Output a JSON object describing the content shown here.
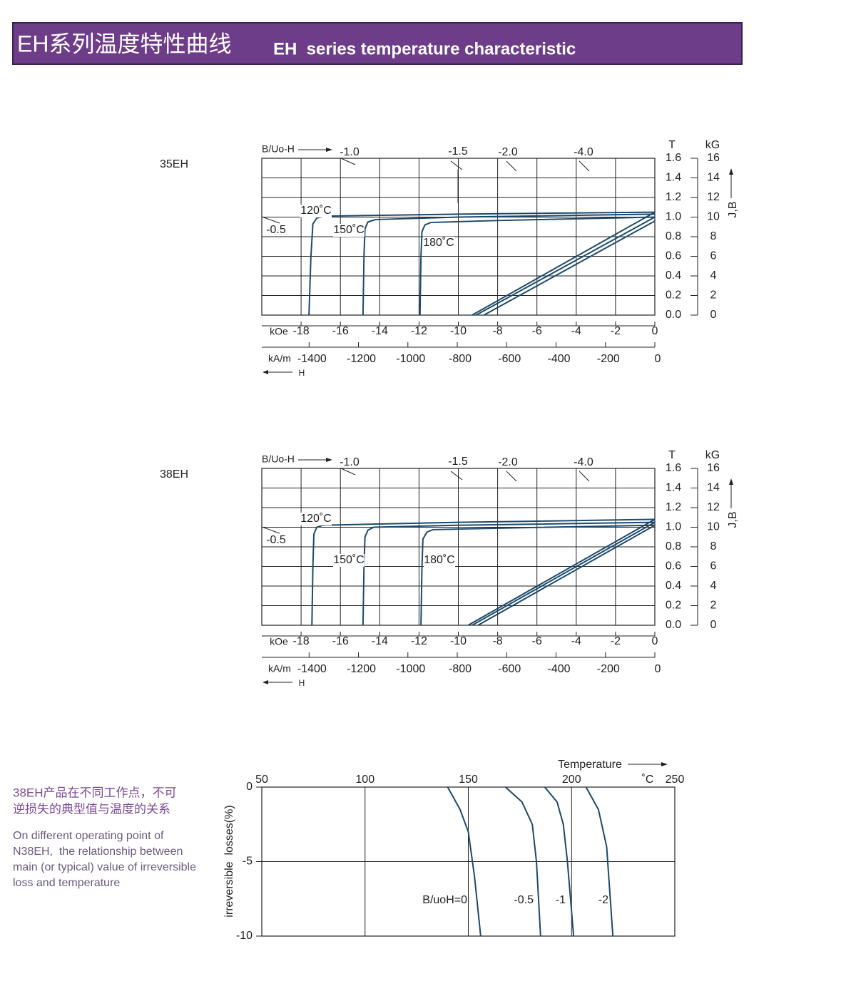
{
  "header": {
    "title_zh": "EH系列温度特性曲线",
    "title_en": "EH  series temperature characteristic"
  },
  "side_note": {
    "text_zh": [
      "38EH产品在不同工作点，不可",
      "逆损失的典型值与温度的关系"
    ],
    "text_en": [
      "On different operating point of",
      "N38EH,  the relationship between",
      "main (or typical) value of irreversible",
      "loss and temperature"
    ]
  },
  "chart_data": [
    {
      "type": "demag",
      "label": "35EH",
      "x_axis_label": "kOe",
      "x2_axis_label": "kA/m",
      "h_label": "H",
      "y_axis_label": "T",
      "y2_axis_label": "kG",
      "jb_label": "J,B",
      "load_line_label": "B/Uo-H",
      "load_lines": [
        "-1.0",
        "-1.5",
        "-2.0",
        "-4.0",
        "-0.5"
      ],
      "xlim": [
        -20,
        0
      ],
      "xticks": [
        -18,
        -16,
        -14,
        -12,
        -10,
        -8,
        -6,
        -4,
        -2,
        0
      ],
      "x2lim": [
        -1591.5,
        0
      ],
      "x2ticks": [
        -1400,
        -1200,
        -1000,
        -800,
        -600,
        -400,
        -200,
        0
      ],
      "ylim": [
        0,
        1.6
      ],
      "yticks": [
        {
          "value": 0,
          "label": "0.0"
        },
        0.2,
        0.4,
        0.6,
        0.8,
        {
          "value": 1,
          "label": "1.0"
        },
        1.2,
        1.4,
        1.6
      ],
      "y2lim": [
        0,
        16
      ],
      "y2ticks": [
        0,
        2,
        4,
        6,
        8,
        10,
        12,
        14,
        16
      ],
      "grid": true,
      "series": [
        {
          "name": "120˚C",
          "color": "#1d4a6b",
          "x": [
            0,
            -10,
            -16.8,
            -17.2,
            -17.4,
            -17.5,
            -17.6
          ],
          "values": [
            1.05,
            1.03,
            1.01,
            0.99,
            0.93,
            0.6,
            0
          ]
        },
        {
          "name": "150˚C",
          "color": "#1d4a6b",
          "x": [
            0,
            -10,
            -14.2,
            -14.6,
            -14.75,
            -14.8,
            -14.85
          ],
          "values": [
            1.03,
            1.0,
            0.975,
            0.95,
            0.88,
            0.6,
            0
          ]
        },
        {
          "name": "180˚C",
          "color": "#1d4a6b",
          "x": [
            0,
            -8,
            -11.4,
            -11.7,
            -11.85,
            -11.9,
            -11.95
          ],
          "values": [
            1.0,
            0.965,
            0.945,
            0.92,
            0.85,
            0.6,
            0
          ]
        },
        {
          "color": "#1d4a6b",
          "x": [
            0,
            -9.3
          ],
          "values": [
            1.05,
            0
          ]
        },
        {
          "color": "#1d4a6b",
          "x": [
            0,
            -9.1
          ],
          "values": [
            1.0,
            0
          ]
        },
        {
          "color": "#1d4a6b",
          "x": [
            0,
            -8.7
          ],
          "values": [
            0.96,
            0
          ]
        }
      ]
    },
    {
      "type": "demag",
      "label": "38EH",
      "x_axis_label": "kOe",
      "x2_axis_label": "kA/m",
      "h_label": "H",
      "y_axis_label": "T",
      "y2_axis_label": "kG",
      "jb_label": "J,B",
      "load_line_label": "B/Uo-H",
      "load_lines": [
        "-1.0",
        "-1.5",
        "-2.0",
        "-4.0",
        "-0.5"
      ],
      "xlim": [
        -20,
        0
      ],
      "xticks": [
        -18,
        -16,
        -14,
        -12,
        -10,
        -8,
        -6,
        -4,
        -2,
        0
      ],
      "x2lim": [
        -1591.5,
        0
      ],
      "x2ticks": [
        -1400,
        -1200,
        -1000,
        -800,
        -600,
        -400,
        -200,
        0
      ],
      "ylim": [
        0,
        1.6
      ],
      "yticks": [
        {
          "value": 0,
          "label": "0.0"
        },
        0.2,
        0.4,
        0.6,
        0.8,
        {
          "value": 1,
          "label": "1.0"
        },
        1.2,
        1.4,
        1.6
      ],
      "y2lim": [
        0,
        16
      ],
      "y2ticks": [
        0,
        2,
        4,
        6,
        8,
        10,
        12,
        14,
        16
      ],
      "grid": true,
      "series": [
        {
          "name": "120˚C",
          "color": "#1d4a6b",
          "x": [
            0,
            -10,
            -16.9,
            -17.2,
            -17.35,
            -17.4,
            -17.45
          ],
          "values": [
            1.08,
            1.05,
            1.02,
            1.0,
            0.93,
            0.6,
            0
          ]
        },
        {
          "name": "150˚C",
          "color": "#1d4a6b",
          "x": [
            0,
            -10,
            -14.3,
            -14.6,
            -14.75,
            -14.8,
            -14.85
          ],
          "values": [
            1.05,
            1.02,
            1.0,
            0.97,
            0.9,
            0.6,
            0
          ]
        },
        {
          "name": "180˚C",
          "color": "#1d4a6b",
          "x": [
            0,
            -8,
            -11.3,
            -11.6,
            -11.8,
            -11.85,
            -11.9
          ],
          "values": [
            1.02,
            0.99,
            0.975,
            0.95,
            0.88,
            0.6,
            0
          ]
        },
        {
          "color": "#1d4a6b",
          "x": [
            0,
            -9.5
          ],
          "values": [
            1.08,
            0
          ]
        },
        {
          "color": "#1d4a6b",
          "x": [
            0,
            -9.3
          ],
          "values": [
            1.05,
            0
          ]
        },
        {
          "color": "#1d4a6b",
          "x": [
            0,
            -9.0
          ],
          "values": [
            1.02,
            0
          ]
        }
      ]
    },
    {
      "type": "line",
      "x_axis_label": "Temperature",
      "x_unit": "˚C",
      "y_axis_label": "irreversible  losses(%)",
      "xlim": [
        50,
        250
      ],
      "xticks": [
        50,
        100,
        150,
        200,
        250
      ],
      "ylim": [
        -10,
        0
      ],
      "yticks": [
        -10,
        -5,
        0
      ],
      "grid": true,
      "series": [
        {
          "name": "B/uoH=0",
          "color": "#1d4a6b",
          "x": [
            140,
            146,
            150,
            153,
            156
          ],
          "values": [
            0,
            -1.5,
            -3,
            -6,
            -10
          ]
        },
        {
          "name": "-0.5",
          "color": "#1d4a6b",
          "x": [
            168,
            176,
            181,
            183,
            185
          ],
          "values": [
            0,
            -1,
            -2.5,
            -5,
            -10
          ]
        },
        {
          "name": "-1",
          "color": "#1d4a6b",
          "x": [
            187,
            193,
            196,
            198,
            201
          ],
          "values": [
            0,
            -1,
            -2.5,
            -5,
            -10
          ]
        },
        {
          "name": "-2",
          "color": "#1d4a6b",
          "x": [
            207,
            213,
            217,
            218,
            220
          ],
          "values": [
            0,
            -1.5,
            -4,
            -6,
            -10
          ]
        }
      ]
    }
  ]
}
